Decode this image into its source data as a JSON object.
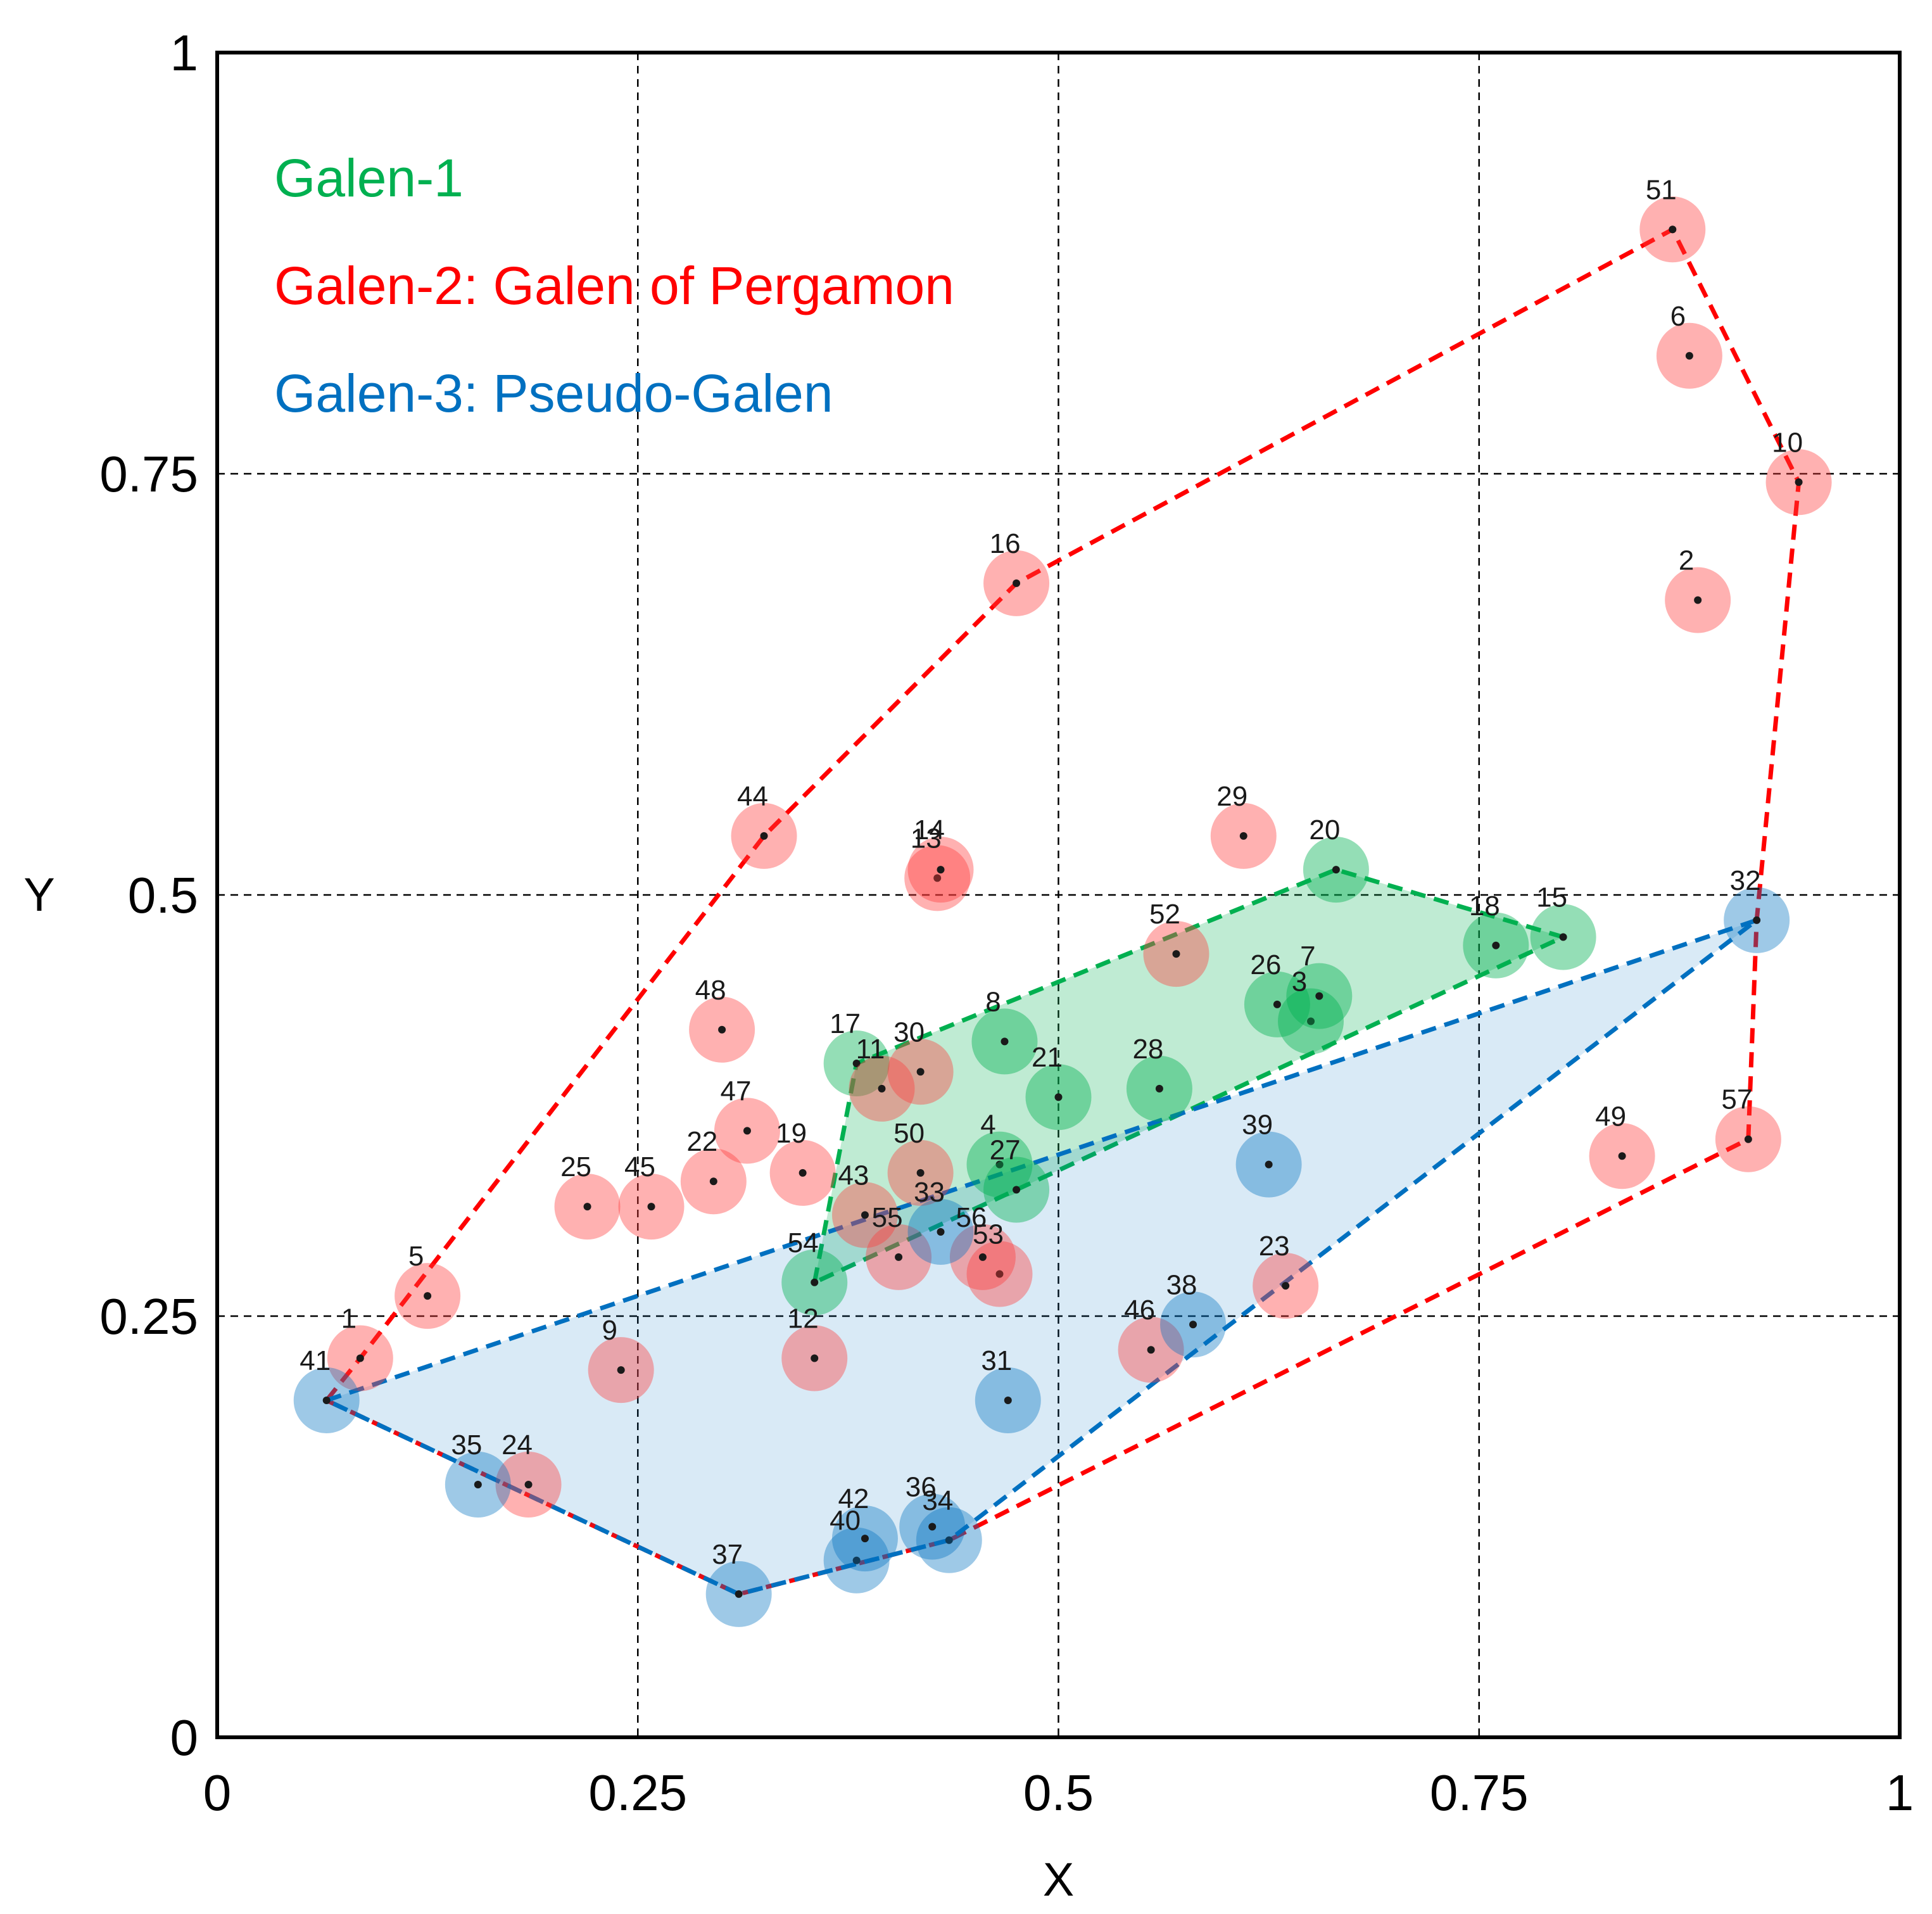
{
  "chart_data": {
    "type": "scatter",
    "title": "",
    "xlabel": "X",
    "ylabel": "Y",
    "xlim": [
      0,
      1
    ],
    "ylim": [
      0,
      1
    ],
    "grid": true,
    "xticks": [
      {
        "value": 0,
        "label": "0"
      },
      {
        "value": 0.25,
        "label": "0.25"
      },
      {
        "value": 0.5,
        "label": "0.5"
      },
      {
        "value": 0.75,
        "label": "0.75"
      },
      {
        "value": 1,
        "label": "1"
      }
    ],
    "yticks": [
      {
        "value": 0,
        "label": "0"
      },
      {
        "value": 0.25,
        "label": "0.25"
      },
      {
        "value": 0.5,
        "label": "0.5"
      },
      {
        "value": 0.75,
        "label": "0.75"
      },
      {
        "value": 1,
        "label": "1"
      }
    ],
    "legend_position": "top-left",
    "series": [
      {
        "name": "Galen-1",
        "color": "#00b050",
        "points": [
          {
            "label": "3",
            "x": 0.65,
            "y": 0.425
          },
          {
            "label": "4",
            "x": 0.465,
            "y": 0.34
          },
          {
            "label": "7",
            "x": 0.655,
            "y": 0.44
          },
          {
            "label": "8",
            "x": 0.468,
            "y": 0.413
          },
          {
            "label": "15",
            "x": 0.8,
            "y": 0.475
          },
          {
            "label": "17",
            "x": 0.38,
            "y": 0.4
          },
          {
            "label": "18",
            "x": 0.76,
            "y": 0.47
          },
          {
            "label": "20",
            "x": 0.665,
            "y": 0.515
          },
          {
            "label": "21",
            "x": 0.5,
            "y": 0.38
          },
          {
            "label": "26",
            "x": 0.63,
            "y": 0.435
          },
          {
            "label": "27",
            "x": 0.475,
            "y": 0.325
          },
          {
            "label": "28",
            "x": 0.56,
            "y": 0.385
          },
          {
            "label": "54",
            "x": 0.355,
            "y": 0.27
          }
        ],
        "hull": [
          "54",
          "17",
          "20",
          "15",
          "27"
        ]
      },
      {
        "name": "Galen-2: Galen of Pergamon",
        "color": "#ff0000",
        "points": [
          {
            "label": "1",
            "x": 0.085,
            "y": 0.225
          },
          {
            "label": "2",
            "x": 0.88,
            "y": 0.675
          },
          {
            "label": "5",
            "x": 0.125,
            "y": 0.262
          },
          {
            "label": "6",
            "x": 0.875,
            "y": 0.82
          },
          {
            "label": "9",
            "x": 0.24,
            "y": 0.218
          },
          {
            "label": "10",
            "x": 0.94,
            "y": 0.745
          },
          {
            "label": "11",
            "x": 0.395,
            "y": 0.385
          },
          {
            "label": "12",
            "x": 0.355,
            "y": 0.225
          },
          {
            "label": "13",
            "x": 0.428,
            "y": 0.51
          },
          {
            "label": "14",
            "x": 0.43,
            "y": 0.515
          },
          {
            "label": "16",
            "x": 0.475,
            "y": 0.685
          },
          {
            "label": "19",
            "x": 0.348,
            "y": 0.335
          },
          {
            "label": "22",
            "x": 0.295,
            "y": 0.33
          },
          {
            "label": "23",
            "x": 0.635,
            "y": 0.268
          },
          {
            "label": "24",
            "x": 0.185,
            "y": 0.15
          },
          {
            "label": "25",
            "x": 0.22,
            "y": 0.315
          },
          {
            "label": "29",
            "x": 0.61,
            "y": 0.535
          },
          {
            "label": "30",
            "x": 0.418,
            "y": 0.395
          },
          {
            "label": "43",
            "x": 0.385,
            "y": 0.31
          },
          {
            "label": "44",
            "x": 0.325,
            "y": 0.535
          },
          {
            "label": "45",
            "x": 0.258,
            "y": 0.315
          },
          {
            "label": "46",
            "x": 0.555,
            "y": 0.23
          },
          {
            "label": "47",
            "x": 0.315,
            "y": 0.36
          },
          {
            "label": "48",
            "x": 0.3,
            "y": 0.42
          },
          {
            "label": "49",
            "x": 0.835,
            "y": 0.345
          },
          {
            "label": "50",
            "x": 0.418,
            "y": 0.335
          },
          {
            "label": "51",
            "x": 0.865,
            "y": 0.895
          },
          {
            "label": "52",
            "x": 0.57,
            "y": 0.465
          },
          {
            "label": "53",
            "x": 0.465,
            "y": 0.275
          },
          {
            "label": "55",
            "x": 0.405,
            "y": 0.285
          },
          {
            "label": "56",
            "x": 0.455,
            "y": 0.285
          },
          {
            "label": "57",
            "x": 0.91,
            "y": 0.355
          }
        ],
        "hull": [
          "41",
          "1",
          "44",
          "16",
          "51",
          "10",
          "32",
          "57",
          "34",
          "37"
        ]
      },
      {
        "name": "Galen-3: Pseudo-Galen",
        "color": "#0070c0",
        "points": [
          {
            "label": "31",
            "x": 0.47,
            "y": 0.2
          },
          {
            "label": "32",
            "x": 0.915,
            "y": 0.485
          },
          {
            "label": "33",
            "x": 0.43,
            "y": 0.3
          },
          {
            "label": "34",
            "x": 0.435,
            "y": 0.117
          },
          {
            "label": "35",
            "x": 0.155,
            "y": 0.15
          },
          {
            "label": "36",
            "x": 0.425,
            "y": 0.125
          },
          {
            "label": "37",
            "x": 0.31,
            "y": 0.085
          },
          {
            "label": "38",
            "x": 0.58,
            "y": 0.245
          },
          {
            "label": "39",
            "x": 0.625,
            "y": 0.34
          },
          {
            "label": "40",
            "x": 0.38,
            "y": 0.105
          },
          {
            "label": "41",
            "x": 0.065,
            "y": 0.2
          },
          {
            "label": "42",
            "x": 0.385,
            "y": 0.118
          }
        ],
        "hull": [
          "41",
          "32",
          "34",
          "37"
        ]
      }
    ]
  }
}
